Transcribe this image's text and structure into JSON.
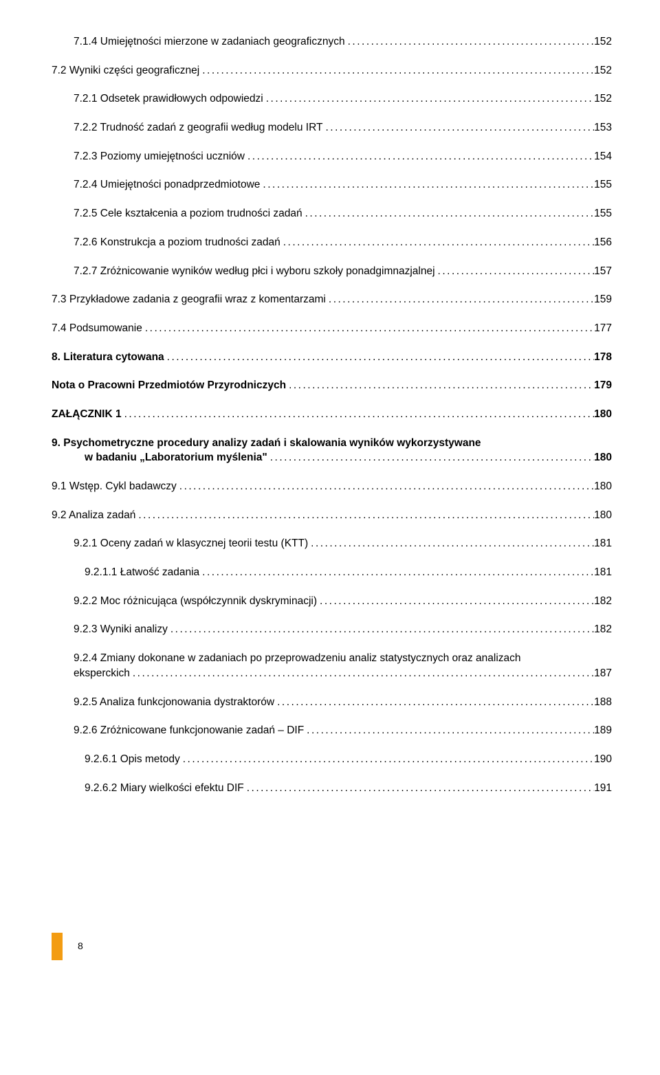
{
  "text_color": "#000000",
  "background_color": "#ffffff",
  "accent_color": "#f39c12",
  "font_family": "Arial, sans-serif",
  "body_fontsize": 15.5,
  "entries": [
    {
      "label": "7.1.4 Umiejętności mierzone w zadaniach geograficznych",
      "page": "152",
      "level": 1,
      "bold": false
    },
    {
      "label": "7.2 Wyniki części geograficznej",
      "page": "152",
      "level": 0,
      "bold": false
    },
    {
      "label": "7.2.1 Odsetek prawidłowych odpowiedzi",
      "page": "152",
      "level": 1,
      "bold": false
    },
    {
      "label": "7.2.2 Trudność zadań z geografii według modelu IRT",
      "page": "153",
      "level": 1,
      "bold": false
    },
    {
      "label": "7.2.3 Poziomy umiejętności uczniów",
      "page": "154",
      "level": 1,
      "bold": false
    },
    {
      "label": "7.2.4 Umiejętności ponadprzedmiotowe",
      "page": "155",
      "level": 1,
      "bold": false
    },
    {
      "label": "7.2.5 Cele kształcenia a poziom trudności zadań",
      "page": "155",
      "level": 1,
      "bold": false
    },
    {
      "label": "7.2.6 Konstrukcja a poziom trudności zadań",
      "page": "156",
      "level": 1,
      "bold": false
    },
    {
      "label": "7.2.7 Zróżnicowanie wyników według płci i wyboru szkoły ponadgimnazjalnej",
      "page": "157",
      "level": 1,
      "bold": false
    },
    {
      "label": "7.3 Przykładowe zadania z geografii wraz z komentarzami",
      "page": "159",
      "level": 0,
      "bold": false
    },
    {
      "label": "7.4 Podsumowanie",
      "page": "177",
      "level": 0,
      "bold": false
    },
    {
      "label": "8. Literatura cytowana",
      "page": "178",
      "level": 0,
      "bold": true
    },
    {
      "label": "Nota o Pracowni Przedmiotów Przyrodniczych",
      "page": "179",
      "level": 0,
      "bold": true
    },
    {
      "label": "ZAŁĄCZNIK 1",
      "page": "180",
      "level": 0,
      "bold": true
    },
    {
      "label_line1": "9. Psychometryczne procedury analizy zadań i skalowania wyników wykorzystywane",
      "label_line2": "w badaniu „Laboratorium myślenia\"",
      "page": "180",
      "level": 0,
      "bold": true,
      "multiline": true,
      "hang": 1
    },
    {
      "label": "9.1 Wstęp. Cykl badawczy",
      "page": "180",
      "level": 0,
      "bold": false
    },
    {
      "label": "9.2 Analiza zadań",
      "page": "180",
      "level": 0,
      "bold": false
    },
    {
      "label": "9.2.1 Oceny zadań w klasycznej teorii testu (KTT)",
      "page": "181",
      "level": 1,
      "bold": false
    },
    {
      "label": "9.2.1.1 Łatwość zadania",
      "page": "181",
      "level": 2,
      "bold": false
    },
    {
      "label": "9.2.2 Moc różnicująca (współczynnik dyskryminacji)",
      "page": "182",
      "level": 1,
      "bold": false
    },
    {
      "label": "9.2.3 Wyniki analizy",
      "page": "182",
      "level": 1,
      "bold": false
    },
    {
      "label_line1": "9.2.4 Zmiany dokonane w zadaniach po przeprowadzeniu analiz statystycznych oraz analizach",
      "label_line2": "eksperckich",
      "page": "187",
      "level": 1,
      "bold": false,
      "multiline": true,
      "hang": 0
    },
    {
      "label": "9.2.5 Analiza funkcjonowania dystraktorów",
      "page": "188",
      "level": 1,
      "bold": false
    },
    {
      "label": "9.2.6 Zróżnicowane funkcjonowanie zadań – DIF",
      "page": "189",
      "level": 1,
      "bold": false
    },
    {
      "label": "9.2.6.1 Opis metody",
      "page": "190",
      "level": 2,
      "bold": false
    },
    {
      "label": "9.2.6.2 Miary wielkości efektu DIF",
      "page": "191",
      "level": 2,
      "bold": false
    }
  ],
  "footer": {
    "page_number": "8"
  }
}
